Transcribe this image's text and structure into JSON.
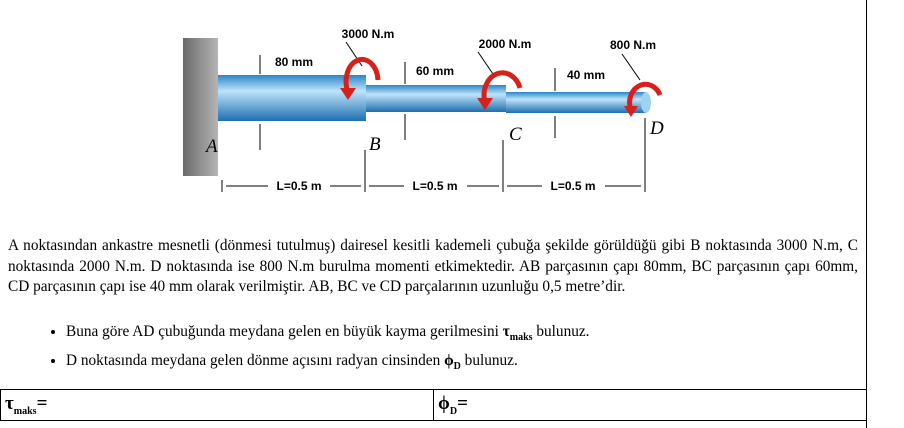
{
  "figure": {
    "moments": [
      "3000 N.m",
      "2000 N.m",
      "800 N.m"
    ],
    "diameters": [
      "80 mm",
      "60 mm",
      "40 mm"
    ],
    "points": [
      "A",
      "B",
      "C",
      "D"
    ],
    "lengths": [
      "L=0.5 m",
      "L=0.5 m",
      "L=0.5 m"
    ]
  },
  "paragraph": "A noktasından ankastre mesnetli (dönmesi tutulmuş) dairesel kesitli kademeli çubuğa şekilde görüldüğü gibi B noktasında 3000 N.m, C noktasında 2000 N.m. D noktasında ise 800 N.m burulma momenti etkimektedir. AB parçasının çapı 80mm, BC parçasının çapı 60mm, CD parçasının çapı ise 40 mm olarak verilmiştir. AB, BC ve CD parçalarının uzunluğu 0,5 metre’dir.",
  "bullets": [
    {
      "text": "Buna göre AD  çubuğunda meydana gelen en büyük kayma gerilmesini ",
      "symbol": "τ",
      "subscript": "maks",
      "end": " bulunuz."
    },
    {
      "text": "D noktasında meydana gelen dönme açısını radyan cinsinden ",
      "symbol": "ϕ",
      "subscript": "D",
      "end": " bulunuz."
    }
  ],
  "answer_table": [
    {
      "symbol": "τ",
      "subscript": "maks",
      "suffix": "="
    },
    {
      "symbol": "ϕ",
      "subscript": "D",
      "suffix": "="
    }
  ]
}
